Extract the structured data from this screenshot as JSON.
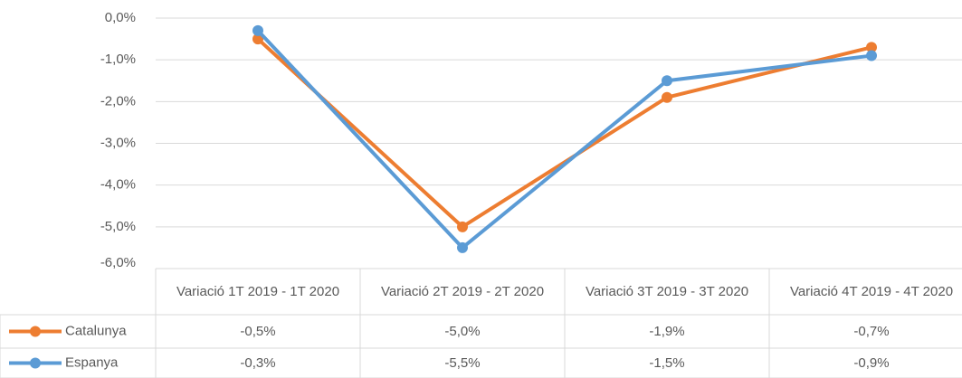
{
  "chart_data": {
    "type": "line",
    "categories": [
      "Variació 1T 2019 - 1T 2020",
      "Variació 2T 2019 - 2T 2020",
      "Variació 3T 2019 - 3T 2020",
      "Variació 4T 2019 - 4T 2020"
    ],
    "series": [
      {
        "name": "Catalunya",
        "color": "#ed7d31",
        "values": [
          -0.5,
          -5.0,
          -1.9,
          -0.7
        ],
        "value_labels": [
          "-0,5%",
          "-5,0%",
          "-1,9%",
          "-0,7%"
        ]
      },
      {
        "name": "Espanya",
        "color": "#5b9bd5",
        "values": [
          -0.3,
          -5.5,
          -1.5,
          -0.9
        ],
        "value_labels": [
          "-0,3%",
          "-5,5%",
          "-1,5%",
          "-0,9%"
        ]
      }
    ],
    "ylim": [
      -6,
      0
    ],
    "yticks": [
      {
        "value": 0,
        "label": "0,0%"
      },
      {
        "value": -1,
        "label": "-1,0%"
      },
      {
        "value": -2,
        "label": "-2,0%"
      },
      {
        "value": -3,
        "label": "-3,0%"
      },
      {
        "value": -4,
        "label": "-4,0%"
      },
      {
        "value": -5,
        "label": "-5,0%"
      },
      {
        "value": -6,
        "label": "-6,0%"
      }
    ],
    "grid": true,
    "data_table": true
  }
}
